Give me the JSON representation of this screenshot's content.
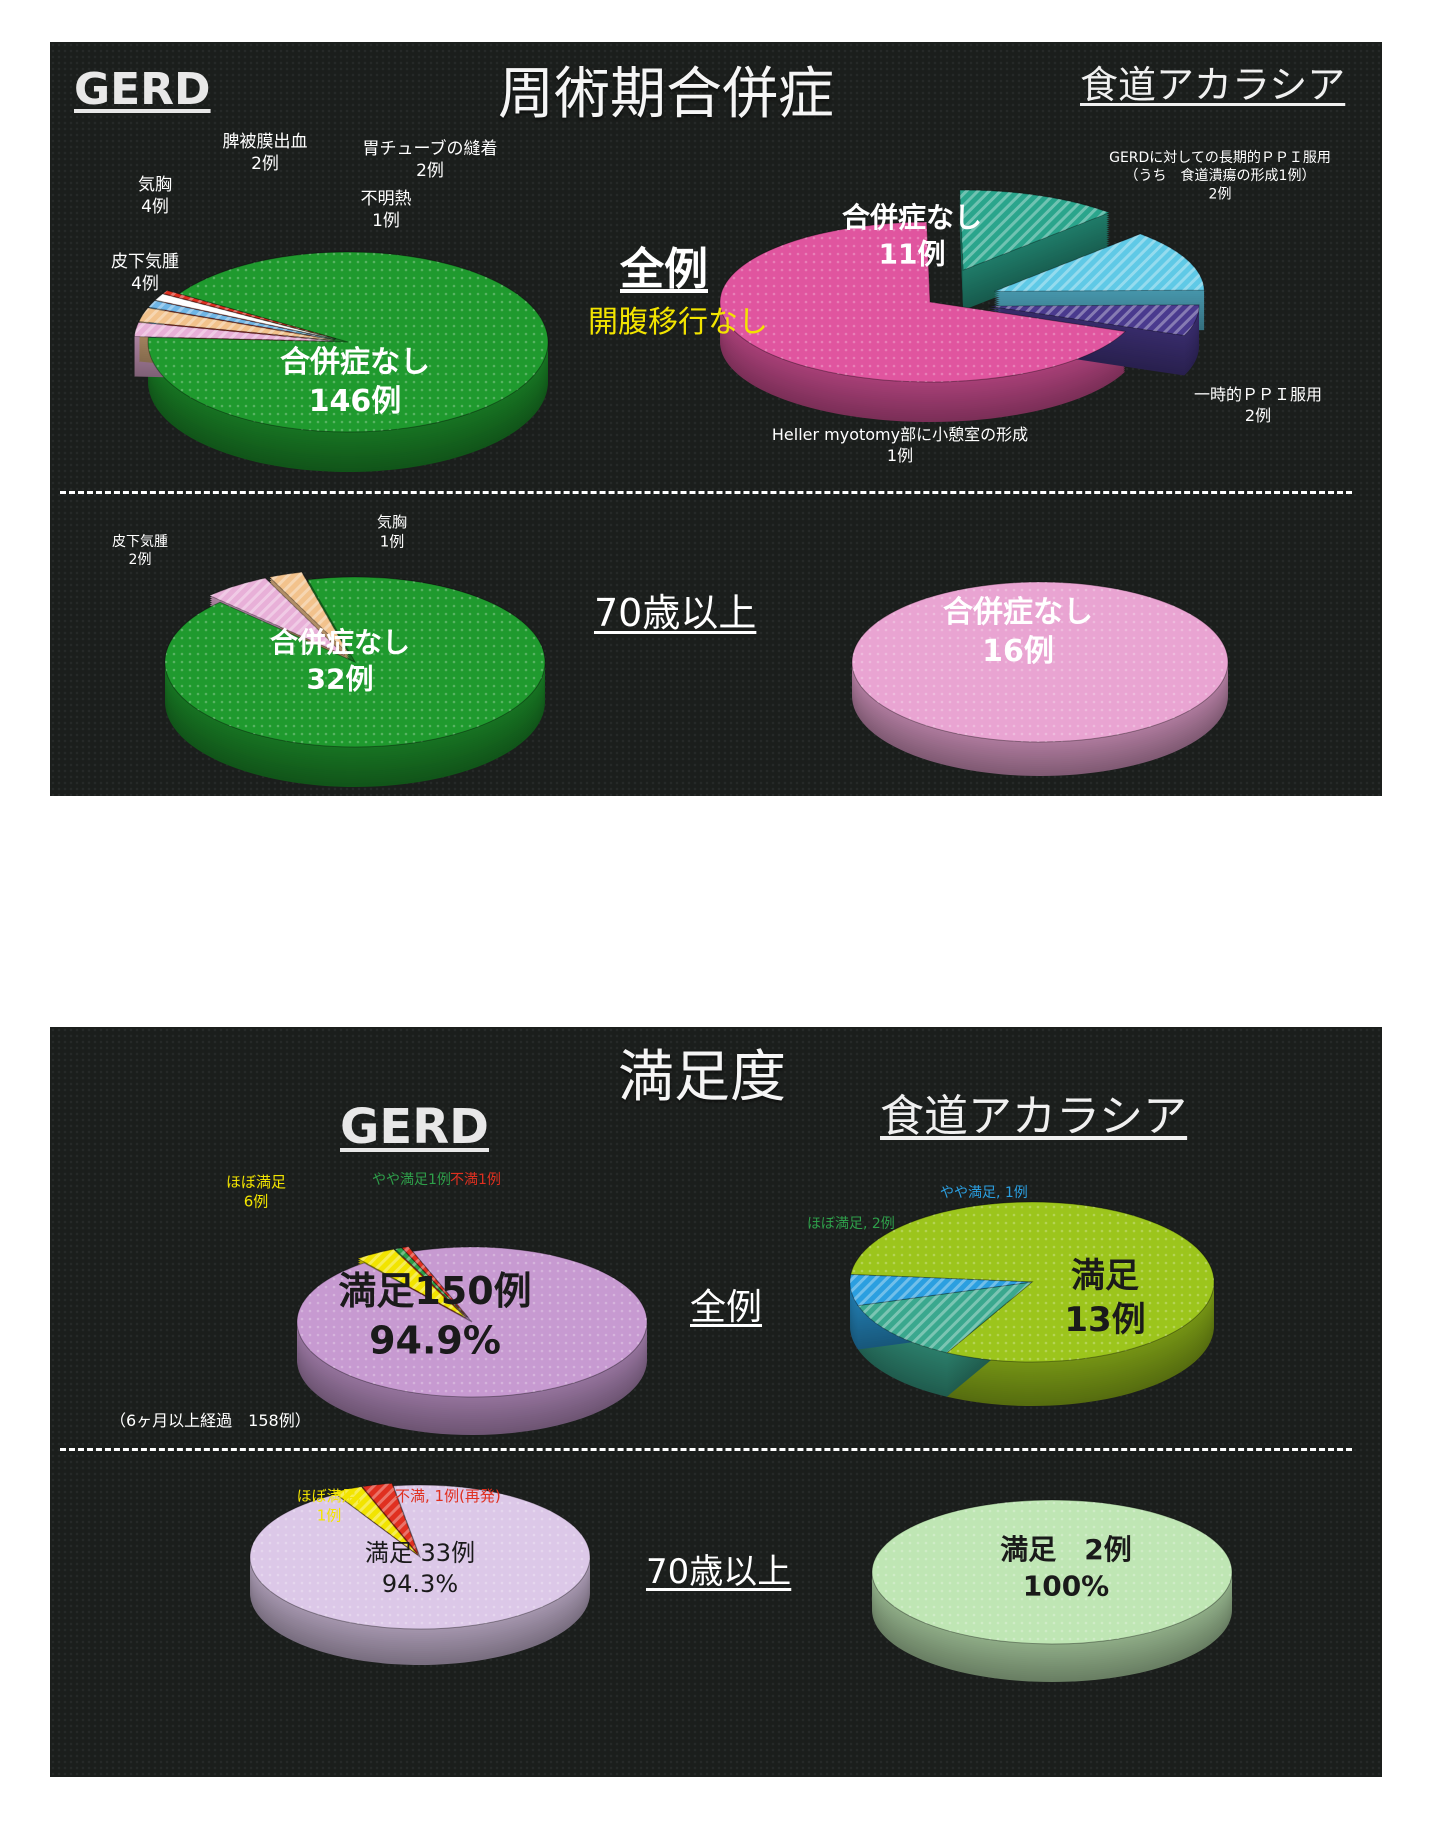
{
  "slide1": {
    "title": "周術期合併症",
    "left_heading": "GERD",
    "right_heading": "食道アカラシア",
    "row1_label": "全例",
    "row1_sublabel": "開腹移行なし",
    "row2_label": "70歳以上"
  },
  "slide2": {
    "title": "満足度",
    "left_heading": "GERD",
    "right_heading": "食道アカラシア",
    "row1_label": "全例",
    "row2_label": "70歳以上",
    "gerd_footnote": "（6ヶ月以上経過　158例）"
  },
  "colors": {
    "background": "#1b1e1c",
    "gerd_green": "#1f9a2e",
    "achalasia_pink": "#e0559f",
    "light_pink": "#e9a4d2",
    "satisfaction_purple": "#c79ad1",
    "achalasia_lime": "#9cc51c",
    "light_green": "#bfe6b4",
    "yellow_text": "#f2e400"
  },
  "chart_data": [
    {
      "id": "gerd_complications_all",
      "type": "pie",
      "title": "",
      "slices": [
        {
          "label_lines": [
            "合併症なし",
            "146例"
          ],
          "value": 146,
          "color": "#1f9a2e"
        },
        {
          "label_lines": [
            "皮下気腫",
            "4例"
          ],
          "value": 4,
          "color": "#e8b0d8"
        },
        {
          "label_lines": [
            "気胸",
            "4例"
          ],
          "value": 4,
          "color": "#f2c28c"
        },
        {
          "label_lines": [
            "脾被膜出血",
            "2例"
          ],
          "value": 2,
          "color": "#6fb6e6"
        },
        {
          "label_lines": [
            "胃チューブの縫着",
            "2例"
          ],
          "value": 2,
          "color": "#ffffff"
        },
        {
          "label_lines": [
            "不明熱",
            "1例"
          ],
          "value": 1,
          "color": "#e03020"
        }
      ]
    },
    {
      "id": "achalasia_complications_all",
      "type": "pie",
      "title": "",
      "slices": [
        {
          "label_lines": [
            "合併症なし",
            "11例"
          ],
          "value": 11,
          "color": "#e0559f"
        },
        {
          "label_lines": [
            "GERDに対しての長期的ＰＰＩ服用",
            "（うち　食道潰瘍の形成1例）",
            "2例"
          ],
          "value": 2,
          "color": "#2aa58c"
        },
        {
          "label_lines": [
            "一時的ＰＰＩ服用",
            "2例"
          ],
          "value": 2,
          "color": "#5fc9e6"
        },
        {
          "label_lines": [
            "Heller myotomy部に小憩室の形成",
            "1例"
          ],
          "value": 1,
          "color": "#4a3a8e"
        }
      ]
    },
    {
      "id": "gerd_complications_70plus",
      "type": "pie",
      "title": "",
      "slices": [
        {
          "label_lines": [
            "合併症なし",
            "32例"
          ],
          "value": 32,
          "color": "#1f9a2e"
        },
        {
          "label_lines": [
            "皮下気腫",
            "2例"
          ],
          "value": 2,
          "color": "#e8b0d8"
        },
        {
          "label_lines": [
            "気胸",
            "1例"
          ],
          "value": 1,
          "color": "#f2c28c"
        }
      ]
    },
    {
      "id": "achalasia_complications_70plus",
      "type": "pie",
      "title": "",
      "slices": [
        {
          "label_lines": [
            "合併症なし",
            "16例"
          ],
          "value": 16,
          "color": "#e9a4d2"
        }
      ]
    },
    {
      "id": "gerd_satisfaction_all",
      "type": "pie",
      "title": "",
      "slices": [
        {
          "label_lines": [
            "満足150例",
            "94.9%"
          ],
          "value": 150,
          "color": "#c79ad1"
        },
        {
          "label_lines": [
            "ほぼ満足",
            "6例"
          ],
          "value": 6,
          "color": "#f2e400"
        },
        {
          "label_lines": [
            "やや満足1例"
          ],
          "value": 1,
          "color": "#2e9f4a"
        },
        {
          "label_lines": [
            "不満1例"
          ],
          "value": 1,
          "color": "#e03020"
        }
      ]
    },
    {
      "id": "achalasia_satisfaction_all",
      "type": "pie",
      "title": "",
      "slices": [
        {
          "label_lines": [
            "満足",
            "13例"
          ],
          "value": 13,
          "color": "#9cc51c"
        },
        {
          "label_lines": [
            "ほぼ満足, 2例"
          ],
          "value": 2,
          "color": "#3aa88e"
        },
        {
          "label_lines": [
            "やや満足, 1例"
          ],
          "value": 1,
          "color": "#2b9fe0"
        }
      ]
    },
    {
      "id": "gerd_satisfaction_70plus",
      "type": "pie",
      "title": "",
      "slices": [
        {
          "label_lines": [
            "満足 33例",
            "94.3%"
          ],
          "value": 33,
          "color": "#dcc8e8"
        },
        {
          "label_lines": [
            "ほぼ満足,",
            "1例"
          ],
          "value": 1,
          "color": "#f2e400"
        },
        {
          "label_lines": [
            "不満, 1例(再発)"
          ],
          "value": 1,
          "color": "#e03020"
        }
      ]
    },
    {
      "id": "achalasia_satisfaction_70plus",
      "type": "pie",
      "title": "",
      "slices": [
        {
          "label_lines": [
            "満足　2例",
            "100%"
          ],
          "value": 2,
          "color": "#bfe6b4"
        }
      ]
    }
  ]
}
